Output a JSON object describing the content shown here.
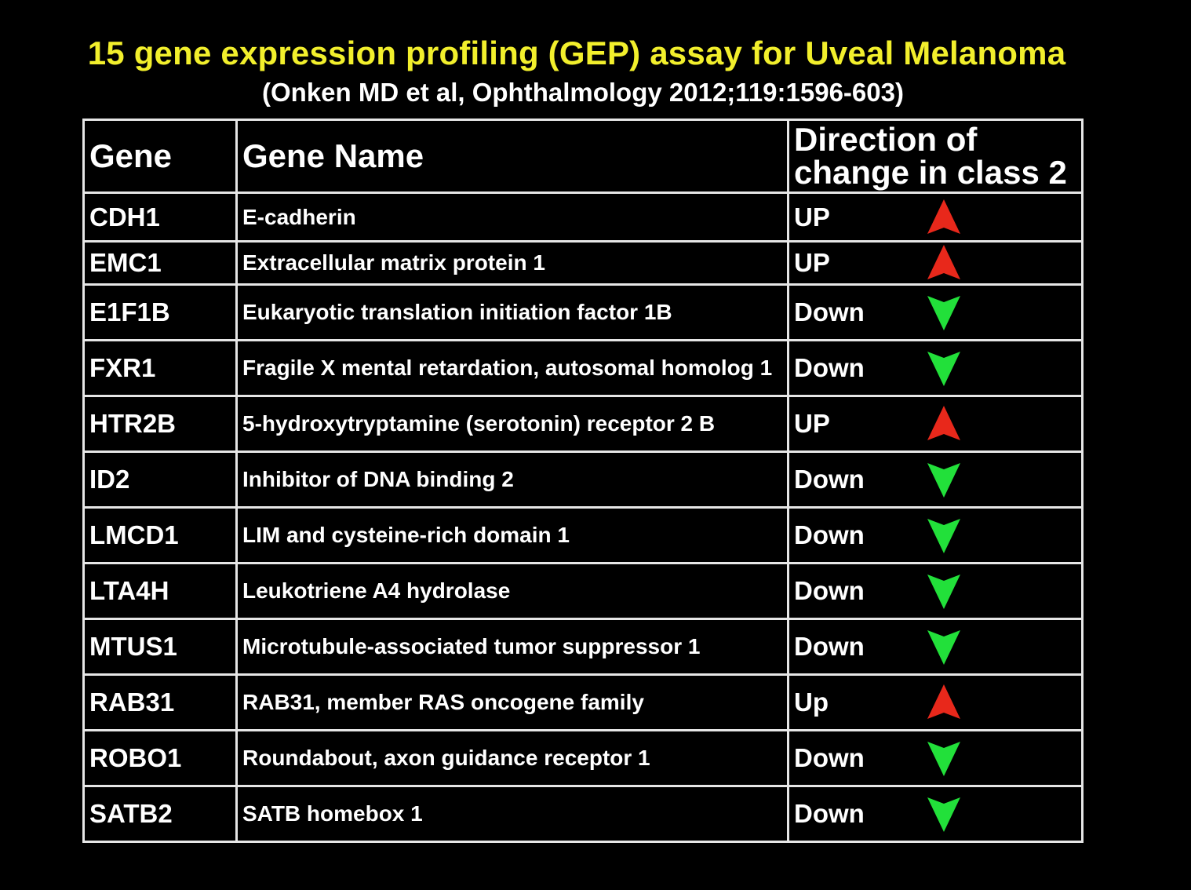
{
  "title": "15 gene expression profiling (GEP) assay for Uveal Melanoma",
  "subtitle": "(Onken MD et al, Ophthalmology 2012;119:1596-603)",
  "table": {
    "headers": {
      "gene": "Gene",
      "gene_name": "Gene Name",
      "direction": "Direction of change in class 2"
    },
    "rows": [
      {
        "gene": "CDH1",
        "name": "E-cadherin",
        "direction": "UP",
        "arrow": "up-arrow-icon"
      },
      {
        "gene": "EMC1",
        "name": "Extracellular matrix protein 1",
        "direction": "UP",
        "arrow": "up-arrow-icon"
      },
      {
        "gene": "E1F1B",
        "name": "Eukaryotic translation initiation factor 1B",
        "direction": "Down",
        "arrow": "down-arrow-icon"
      },
      {
        "gene": "FXR1",
        "name": "Fragile X mental retardation, autosomal homolog 1",
        "direction": "Down",
        "arrow": "down-arrow-icon"
      },
      {
        "gene": "HTR2B",
        "name": "5-hydroxytryptamine (serotonin) receptor 2 B",
        "direction": "UP",
        "arrow": "up-arrow-icon"
      },
      {
        "gene": "ID2",
        "name": "Inhibitor of DNA binding 2",
        "direction": "Down",
        "arrow": "down-arrow-icon"
      },
      {
        "gene": "LMCD1",
        "name": "LIM and cysteine-rich domain 1",
        "direction": "Down",
        "arrow": "down-arrow-icon"
      },
      {
        "gene": "LTA4H",
        "name": "Leukotriene A4 hydrolase",
        "direction": "Down",
        "arrow": "down-arrow-icon"
      },
      {
        "gene": "MTUS1",
        "name": "Microtubule-associated tumor suppressor 1",
        "direction": "Down",
        "arrow": "down-arrow-icon"
      },
      {
        "gene": "RAB31",
        "name": "RAB31, member RAS oncogene family",
        "direction": "Up",
        "arrow": "up-arrow-icon"
      },
      {
        "gene": "ROBO1",
        "name": "Roundabout, axon guidance receptor 1",
        "direction": "Down",
        "arrow": "down-arrow-icon"
      },
      {
        "gene": "SATB2",
        "name": "SATB homebox 1",
        "direction": "Down",
        "arrow": "down-arrow-icon"
      }
    ]
  },
  "colors": {
    "title": "#f2ef2c",
    "up_arrow": "#e8281b",
    "down_arrow": "#22e03a"
  }
}
